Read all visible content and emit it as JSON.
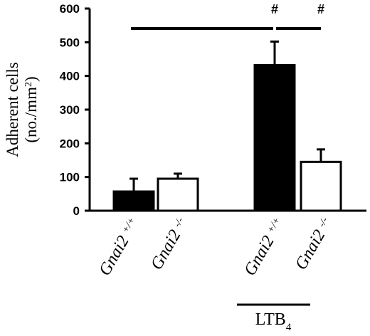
{
  "chart_data": {
    "type": "bar",
    "categories": [
      {
        "gene": "Gnai2",
        "genotype": "+/+"
      },
      {
        "gene": "Gnai2",
        "genotype": "-/-"
      },
      {
        "gene": "Gnai2",
        "genotype": "+/+"
      },
      {
        "gene": "Gnai2",
        "genotype": "-/-"
      }
    ],
    "values": [
      57,
      95,
      432,
      145
    ],
    "errors": [
      38,
      15,
      70,
      37
    ],
    "bar_fill": [
      "#000000",
      "#ffffff",
      "#000000",
      "#ffffff"
    ],
    "ylabel_line1": "Adherent cells",
    "ylabel_line2": "(no./mm",
    "ylabel_sup": "2",
    "ylabel_line2_end": ")",
    "yticks": [
      0,
      100,
      200,
      300,
      400,
      500,
      600
    ],
    "ylim": [
      0,
      600
    ],
    "group_label": {
      "main": "LTB",
      "sub": "4",
      "covers": [
        2,
        3
      ]
    },
    "significance": [
      {
        "from": 0,
        "to": 2,
        "symbol": "#"
      },
      {
        "from": 2,
        "to": 3,
        "symbol": "#"
      }
    ],
    "grid": false
  }
}
